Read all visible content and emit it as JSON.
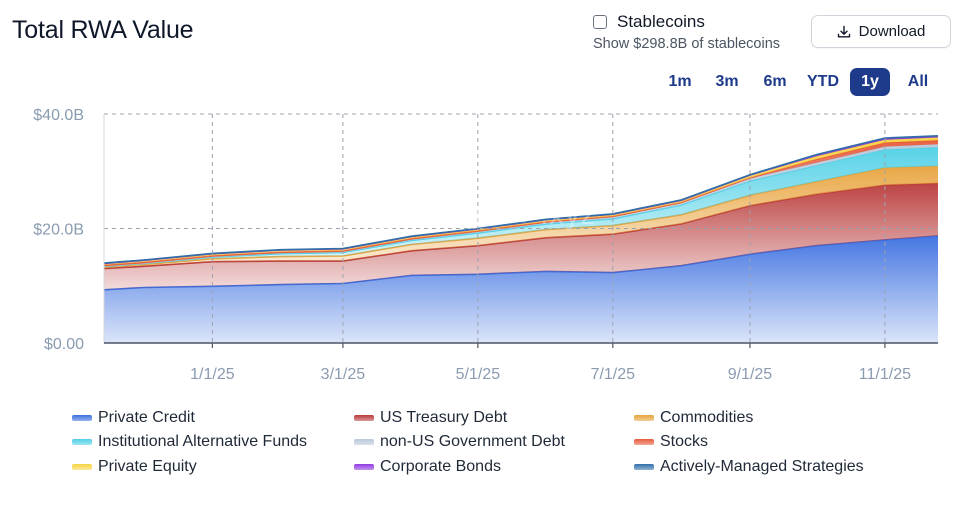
{
  "title": "Total RWA Value",
  "stablecoins": {
    "label": "Stablecoins",
    "sublabel": "Show $298.8B of stablecoins",
    "checked": false
  },
  "download": {
    "label": "Download",
    "icon": "download-icon"
  },
  "ranges": {
    "items": [
      "1m",
      "3m",
      "6m",
      "YTD",
      "1y",
      "All"
    ],
    "active": "1y"
  },
  "watermark": {
    "text": "rwa",
    "suffix": ".xyz",
    "icon": "globe-icon"
  },
  "chart_data": {
    "type": "area",
    "stacked": true,
    "y_ticks": [
      "$0.00",
      "$20.0B",
      "$40.0B"
    ],
    "x_ticks": [
      "1/1/25",
      "3/1/25",
      "5/1/25",
      "7/1/25",
      "9/1/25",
      "11/1/25"
    ],
    "ylim": [
      0,
      40
    ],
    "y_unit": "$B",
    "grid": true,
    "legend_position": "bottom",
    "x": [
      "2024-11-13",
      "2024-12-01",
      "2025-01-01",
      "2025-02-01",
      "2025-03-01",
      "2025-04-01",
      "2025-05-01",
      "2025-06-01",
      "2025-07-01",
      "2025-08-01",
      "2025-09-01",
      "2025-10-01",
      "2025-11-01",
      "2025-11-25"
    ],
    "series": [
      {
        "name": "Private Credit",
        "color": "#3b6fe0",
        "values": [
          9.3,
          9.7,
          9.9,
          10.2,
          10.4,
          11.8,
          12.0,
          12.5,
          12.3,
          13.5,
          15.5,
          17.0,
          18.0,
          18.7
        ]
      },
      {
        "name": "US Treasury Debt",
        "color": "#b93a3a",
        "values": [
          3.7,
          3.7,
          4.3,
          4.1,
          3.9,
          4.3,
          5.0,
          5.9,
          6.7,
          7.3,
          8.5,
          9.0,
          9.6,
          9.2
        ]
      },
      {
        "name": "Commodities",
        "color": "#e8a33c",
        "values": [
          0.25,
          0.3,
          0.5,
          0.8,
          0.9,
          1.1,
          1.3,
          1.4,
          1.5,
          1.6,
          1.8,
          2.2,
          3.0,
          3.0
        ]
      },
      {
        "name": "Institutional Alternative Funds",
        "color": "#4fd0e6",
        "values": [
          0.15,
          0.2,
          0.3,
          0.5,
          0.6,
          0.7,
          0.9,
          1.0,
          1.2,
          1.7,
          2.5,
          2.8,
          3.2,
          3.3
        ]
      },
      {
        "name": "non-US Government Debt",
        "color": "#b9c8da",
        "values": [
          0.1,
          0.1,
          0.15,
          0.2,
          0.2,
          0.25,
          0.3,
          0.3,
          0.35,
          0.4,
          0.45,
          0.5,
          0.5,
          0.5
        ]
      },
      {
        "name": "Stocks",
        "color": "#e85a3a",
        "values": [
          0.05,
          0.05,
          0.05,
          0.05,
          0.05,
          0.05,
          0.05,
          0.05,
          0.05,
          0.05,
          0.1,
          0.6,
          0.7,
          0.7
        ]
      },
      {
        "name": "Private Equity",
        "color": "#f5d442",
        "values": [
          0.25,
          0.3,
          0.3,
          0.3,
          0.3,
          0.3,
          0.3,
          0.3,
          0.3,
          0.3,
          0.4,
          0.5,
          0.5,
          0.5
        ]
      },
      {
        "name": "Corporate Bonds",
        "color": "#8e3ae0",
        "values": [
          0.1,
          0.1,
          0.1,
          0.1,
          0.1,
          0.1,
          0.1,
          0.1,
          0.1,
          0.1,
          0.1,
          0.2,
          0.2,
          0.2
        ]
      },
      {
        "name": "Actively-Managed Strategies",
        "color": "#2f6fa8",
        "values": [
          0.05,
          0.05,
          0.05,
          0.05,
          0.05,
          0.05,
          0.05,
          0.05,
          0.05,
          0.05,
          0.05,
          0.1,
          0.1,
          0.1
        ]
      }
    ]
  }
}
